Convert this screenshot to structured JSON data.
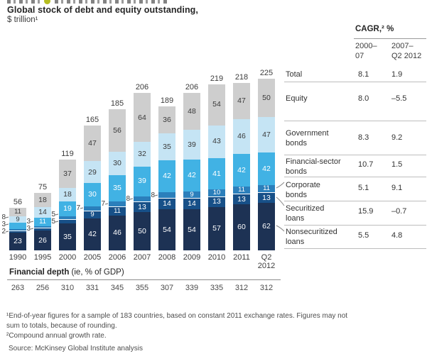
{
  "cropped_header": {
    "dot_color": "#b5bd1f"
  },
  "title": "Global stock of debt and equity outstanding,",
  "subtitle": "$ trillion¹",
  "chart_data": {
    "type": "bar",
    "stacked": true,
    "title": "Global stock of debt and equity outstanding, $ trillion",
    "categories": [
      "1990",
      "1995",
      "2000",
      "2005",
      "2006",
      "2007",
      "2008",
      "2009",
      "2010",
      "2011",
      "Q2\n2012"
    ],
    "totals": [
      56,
      75,
      119,
      165,
      185,
      206,
      189,
      206,
      219,
      218,
      225
    ],
    "series": [
      {
        "name": "Nonsecuritized loans",
        "color": "#1d3254",
        "label_color": "#ffffff",
        "values": [
          23,
          26,
          35,
          42,
          46,
          50,
          54,
          54,
          57,
          60,
          62
        ],
        "label_modes": [
          "inside",
          "inside",
          "inside",
          "inside",
          "inside",
          "inside",
          "inside",
          "inside",
          "inside",
          "inside",
          "inside"
        ]
      },
      {
        "name": "Securitized loans",
        "color": "#175088",
        "label_color": "#ffffff",
        "values": [
          2,
          3,
          5,
          9,
          11,
          13,
          14,
          14,
          13,
          13,
          13
        ],
        "label_modes": [
          "callout",
          "callout",
          "callout",
          "inside",
          "inside",
          "inside",
          "inside",
          "inside",
          "inside",
          "inside",
          "inside"
        ]
      },
      {
        "name": "Corporate bonds",
        "color": "#2b7fbb",
        "label_color": "#ffffff",
        "values": [
          3,
          3,
          5,
          7,
          7,
          8,
          8,
          9,
          10,
          11,
          11
        ],
        "label_modes": [
          "callout",
          "callout",
          "callout",
          "callout",
          "callout",
          "callout",
          "callout",
          "inside",
          "inside",
          "inside",
          "inside"
        ]
      },
      {
        "name": "Financial-sector bonds",
        "color": "#41b2e4",
        "label_color": "#ffffff",
        "values": [
          8,
          11,
          19,
          30,
          35,
          39,
          42,
          42,
          41,
          42,
          42
        ],
        "label_modes": [
          "callout",
          "inside",
          "inside",
          "inside",
          "inside",
          "inside",
          "inside",
          "inside",
          "inside",
          "inside",
          "inside"
        ]
      },
      {
        "name": "Government bonds",
        "color": "#c5e4f4",
        "label_color": "#3a3a3a",
        "values": [
          9,
          14,
          18,
          29,
          30,
          32,
          35,
          39,
          43,
          46,
          47
        ],
        "label_modes": [
          "inside",
          "inside",
          "inside",
          "inside",
          "inside",
          "inside",
          "inside",
          "inside",
          "inside",
          "inside",
          "inside"
        ]
      },
      {
        "name": "Equity",
        "color": "#cecece",
        "label_color": "#3a3a3a",
        "values": [
          11,
          18,
          37,
          47,
          56,
          64,
          36,
          48,
          54,
          47,
          50
        ],
        "label_modes": [
          "inside",
          "inside",
          "inside",
          "inside",
          "inside",
          "inside",
          "inside",
          "inside",
          "inside",
          "inside",
          "inside"
        ]
      }
    ],
    "financial_depth": {
      "label": "Financial depth",
      "sublabel": " (ie, % of GDP)",
      "values": [
        263,
        256,
        310,
        331,
        345,
        355,
        307,
        339,
        335,
        312,
        312
      ]
    },
    "legend_position": "right-table",
    "grid": false
  },
  "table": {
    "header": "CAGR,² %",
    "col_headers": [
      "2000–\n07",
      "2007–\nQ2 2012"
    ],
    "rows": [
      {
        "label": "Total",
        "v1": "8.1",
        "v2": "1.9"
      },
      {
        "label": "Equity",
        "v1": "8.0",
        "v2": "–5.5"
      },
      {
        "label": "Government\nbonds",
        "v1": "8.3",
        "v2": "9.2"
      },
      {
        "label": "Financial-sector\nbonds",
        "v1": "10.7",
        "v2": "1.5"
      },
      {
        "label": "Corporate\nbonds",
        "v1": "5.1",
        "v2": "9.1"
      },
      {
        "label": "Securitized\nloans",
        "v1": "15.9",
        "v2": "–0.7"
      },
      {
        "label": "Nonsecuritized\nloans",
        "v1": "5.5",
        "v2": "4.8"
      }
    ]
  },
  "footnotes": {
    "line1": "¹End-of-year figures for a sample of 183 countries, based on constant 2011 exchange rates. Figures may not sum to totals, because of rounding.",
    "line2": "²Compound annual growth rate.",
    "source": "Source: McKinsey Global Institute analysis"
  }
}
